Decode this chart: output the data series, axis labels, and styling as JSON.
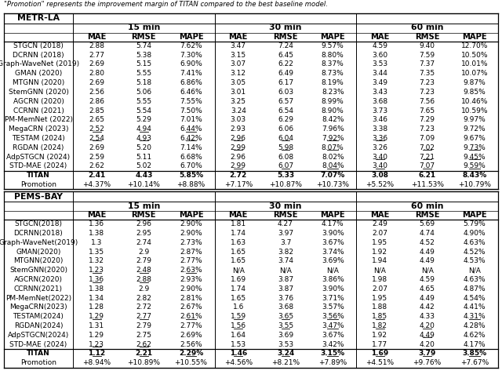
{
  "metr_la": {
    "header": "METR-LA",
    "models": [
      "STGCN (2018)",
      "DCRNN (2018)",
      "Graph-WaveNet (2019)",
      "GMAN (2020)",
      "MTGNN (2020)",
      "StemGNN (2020)",
      "AGCRN (2020)",
      "CCRNN (2021)",
      "PM-MemNet (2022)",
      "MegaCRN (2023)",
      "TESTAM (2024)",
      "RGDAN (2024)",
      "AdpSTGCN (2024)",
      "STD-MAE (2024)",
      "TITAN",
      "Promotion"
    ],
    "data": [
      [
        "2.88",
        "5.74",
        "7.62%",
        "3.47",
        "7.24",
        "9.57%",
        "4.59",
        "9.40",
        "12.70%"
      ],
      [
        "2.77",
        "5.38",
        "7.30%",
        "3.15",
        "6.45",
        "8.80%",
        "3.60",
        "7.59",
        "10.50%"
      ],
      [
        "2.69",
        "5.15",
        "6.90%",
        "3.07",
        "6.22",
        "8.37%",
        "3.53",
        "7.37",
        "10.01%"
      ],
      [
        "2.80",
        "5.55",
        "7.41%",
        "3.12",
        "6.49",
        "8.73%",
        "3.44",
        "7.35",
        "10.07%"
      ],
      [
        "2.69",
        "5.18",
        "6.86%",
        "3.05",
        "6.17",
        "8.19%",
        "3.49",
        "7.23",
        "9.87%"
      ],
      [
        "2.56",
        "5.06",
        "6.46%",
        "3.01",
        "6.03",
        "8.23%",
        "3.43",
        "7.23",
        "9.85%"
      ],
      [
        "2.86",
        "5.55",
        "7.55%",
        "3.25",
        "6.57",
        "8.99%",
        "3.68",
        "7.56",
        "10.46%"
      ],
      [
        "2.85",
        "5.54",
        "7.50%",
        "3.24",
        "6.54",
        "8.90%",
        "3.73",
        "7.65",
        "10.59%"
      ],
      [
        "2.65",
        "5.29",
        "7.01%",
        "3.03",
        "6.29",
        "8.42%",
        "3.46",
        "7.29",
        "9.97%"
      ],
      [
        "2.52",
        "4.94",
        "6.44%",
        "2.93",
        "6.06",
        "7.96%",
        "3.38",
        "7.23",
        "9.72%"
      ],
      [
        "2.54",
        "4.93",
        "6.42%",
        "2.96",
        "6.04",
        "7.92%",
        "3.36",
        "7.09",
        "9.67%"
      ],
      [
        "2.69",
        "5.20",
        "7.14%",
        "2.99",
        "5.98",
        "8.07%",
        "3.26",
        "7.02",
        "9.73%"
      ],
      [
        "2.59",
        "5.11",
        "6.68%",
        "2.96",
        "6.08",
        "8.02%",
        "3.40",
        "7.21",
        "9.45%"
      ],
      [
        "2.62",
        "5.02",
        "6.70%",
        "2.99",
        "6.07",
        "8.04%",
        "3.40",
        "7.07",
        "9.59%"
      ],
      [
        "2.41",
        "4.43",
        "5.85%",
        "2.72",
        "5.33",
        "7.07%",
        "3.08",
        "6.21",
        "8.43%"
      ],
      [
        "+4.37%",
        "+10.14%",
        "+8.88%",
        "+7.17%",
        "+10.87%",
        "+10.73%",
        "+5.52%",
        "+11.53%",
        "+10.79%"
      ]
    ],
    "underlines": [
      [
        9,
        0
      ],
      [
        9,
        1
      ],
      [
        9,
        2
      ],
      [
        10,
        0
      ],
      [
        10,
        1
      ],
      [
        10,
        2
      ],
      [
        10,
        3
      ],
      [
        10,
        4
      ],
      [
        10,
        5
      ],
      [
        10,
        6
      ],
      [
        11,
        3
      ],
      [
        11,
        4
      ],
      [
        11,
        5
      ],
      [
        11,
        7
      ],
      [
        11,
        8
      ],
      [
        12,
        6
      ],
      [
        12,
        7
      ],
      [
        12,
        8
      ],
      [
        13,
        3
      ],
      [
        13,
        4
      ],
      [
        13,
        5
      ],
      [
        13,
        6
      ],
      [
        13,
        7
      ],
      [
        13,
        8
      ]
    ]
  },
  "pems_bay": {
    "header": "PEMS-BAY",
    "models": [
      "STGCN(2018)",
      "DCRNN(2018)",
      "Graph-WaveNet(2019)",
      "GMAN(2020)",
      "MTGNN(2020)",
      "StemGNN(2020)",
      "AGCRN(2020)",
      "CCRNN(2021)",
      "PM-MemNet(2022)",
      "MegaCRN(2023)",
      "TESTAM(2024)",
      "RGDAN(2024)",
      "AdpSTGCN(2024)",
      "STD-MAE (2024)",
      "TITAN",
      "Promotion"
    ],
    "data": [
      [
        "1.36",
        "2.96",
        "2.90%",
        "1.81",
        "4.27",
        "4.17%",
        "2.49",
        "5.69",
        "5.79%"
      ],
      [
        "1.38",
        "2.95",
        "2.90%",
        "1.74",
        "3.97",
        "3.90%",
        "2.07",
        "4.74",
        "4.90%"
      ],
      [
        "1.3",
        "2.74",
        "2.73%",
        "1.63",
        "3.7",
        "3.67%",
        "1.95",
        "4.52",
        "4.63%"
      ],
      [
        "1.35",
        "2.9",
        "2.87%",
        "1.65",
        "3.82",
        "3.74%",
        "1.92",
        "4.49",
        "4.52%"
      ],
      [
        "1.32",
        "2.79",
        "2.77%",
        "1.65",
        "3.74",
        "3.69%",
        "1.94",
        "4.49",
        "4.53%"
      ],
      [
        "1.23",
        "2.48",
        "2.63%",
        "N/A",
        "N/A",
        "N/A",
        "N/A",
        "N/A",
        "N/A"
      ],
      [
        "1.36",
        "2.88",
        "2.93%",
        "1.69",
        "3.87",
        "3.86%",
        "1.98",
        "4.59",
        "4.63%"
      ],
      [
        "1.38",
        "2.9",
        "2.90%",
        "1.74",
        "3.87",
        "3.90%",
        "2.07",
        "4.65",
        "4.87%"
      ],
      [
        "1.34",
        "2.82",
        "2.81%",
        "1.65",
        "3.76",
        "3.71%",
        "1.95",
        "4.49",
        "4.54%"
      ],
      [
        "1.28",
        "2.72",
        "2.67%",
        "1.6",
        "3.68",
        "3.57%",
        "1.88",
        "4.42",
        "4.41%"
      ],
      [
        "1.29",
        "2.77",
        "2.61%",
        "1.59",
        "3.65",
        "3.56%",
        "1.85",
        "4.33",
        "4.31%"
      ],
      [
        "1.31",
        "2.79",
        "2.77%",
        "1.56",
        "3.55",
        "3.47%",
        "1.82",
        "4.20",
        "4.28%"
      ],
      [
        "1.29",
        "2.75",
        "2.69%",
        "1.64",
        "3.69",
        "3.67%",
        "1.92",
        "4.49",
        "4.62%"
      ],
      [
        "1.23",
        "2.62",
        "2.56%",
        "1.53",
        "3.53",
        "3.42%",
        "1.77",
        "4.20",
        "4.17%"
      ],
      [
        "1.12",
        "2.21",
        "2.29%",
        "1.46",
        "3.24",
        "3.15%",
        "1.69",
        "3.79",
        "3.85%"
      ],
      [
        "+8.94%",
        "+10.89%",
        "+10.55%",
        "+4.56%",
        "+8.21%",
        "+7.89%",
        "+4.51%",
        "+9.76%",
        "+7.67%"
      ]
    ],
    "underlines": [
      [
        5,
        0
      ],
      [
        5,
        1
      ],
      [
        5,
        2
      ],
      [
        6,
        0
      ],
      [
        6,
        1
      ],
      [
        10,
        0
      ],
      [
        10,
        1
      ],
      [
        10,
        2
      ],
      [
        10,
        3
      ],
      [
        10,
        4
      ],
      [
        10,
        5
      ],
      [
        10,
        6
      ],
      [
        10,
        8
      ],
      [
        11,
        3
      ],
      [
        11,
        4
      ],
      [
        11,
        5
      ],
      [
        11,
        6
      ],
      [
        11,
        7
      ],
      [
        12,
        7
      ],
      [
        13,
        0
      ],
      [
        13,
        1
      ],
      [
        14,
        0
      ],
      [
        14,
        1
      ],
      [
        14,
        2
      ],
      [
        14,
        3
      ],
      [
        14,
        4
      ],
      [
        14,
        5
      ],
      [
        14,
        6
      ],
      [
        14,
        7
      ],
      [
        14,
        8
      ]
    ]
  },
  "title": "\"Promotion\" represents the improvement margin of TITAN compared to the best baseline model.",
  "col_groups": [
    "15 min",
    "30 min",
    "60 min"
  ],
  "col_labels": [
    "MAE",
    "RMSE",
    "MAPE"
  ]
}
